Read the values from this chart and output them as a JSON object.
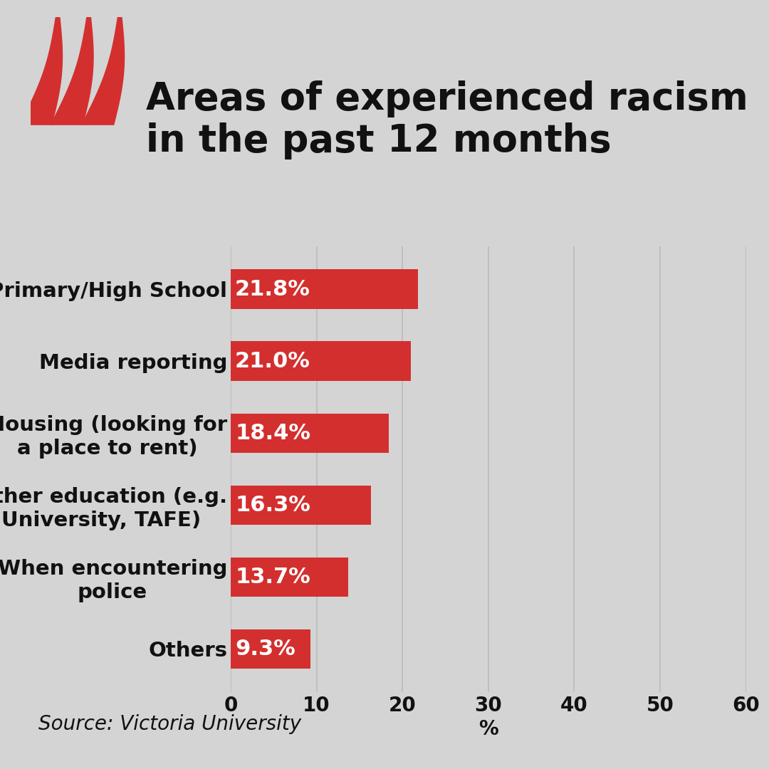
{
  "title_line1": "Areas of experienced racism",
  "title_line2": "in the past 12 months",
  "categories": [
    "Primary/High School",
    "Media reporting",
    "Housing (looking for\na place to rent)",
    "Other education (e.g.\nUniversity, TAFE)",
    "When encountering\npolice",
    "Others"
  ],
  "values": [
    21.8,
    21.0,
    18.4,
    16.3,
    13.7,
    9.3
  ],
  "bar_color": "#D32F2F",
  "label_color": "#FFFFFF",
  "background_color": "#D4D4D4",
  "title_color": "#111111",
  "source_text": "Source: Victoria University",
  "xlabel": "%",
  "xlim": [
    0,
    60
  ],
  "xticks": [
    0,
    10,
    20,
    30,
    40,
    50,
    60
  ],
  "bar_height": 0.55,
  "title_fontsize": 38,
  "label_fontsize": 22,
  "tick_fontsize": 20,
  "source_fontsize": 20,
  "grid_color": "#BBBBBB"
}
